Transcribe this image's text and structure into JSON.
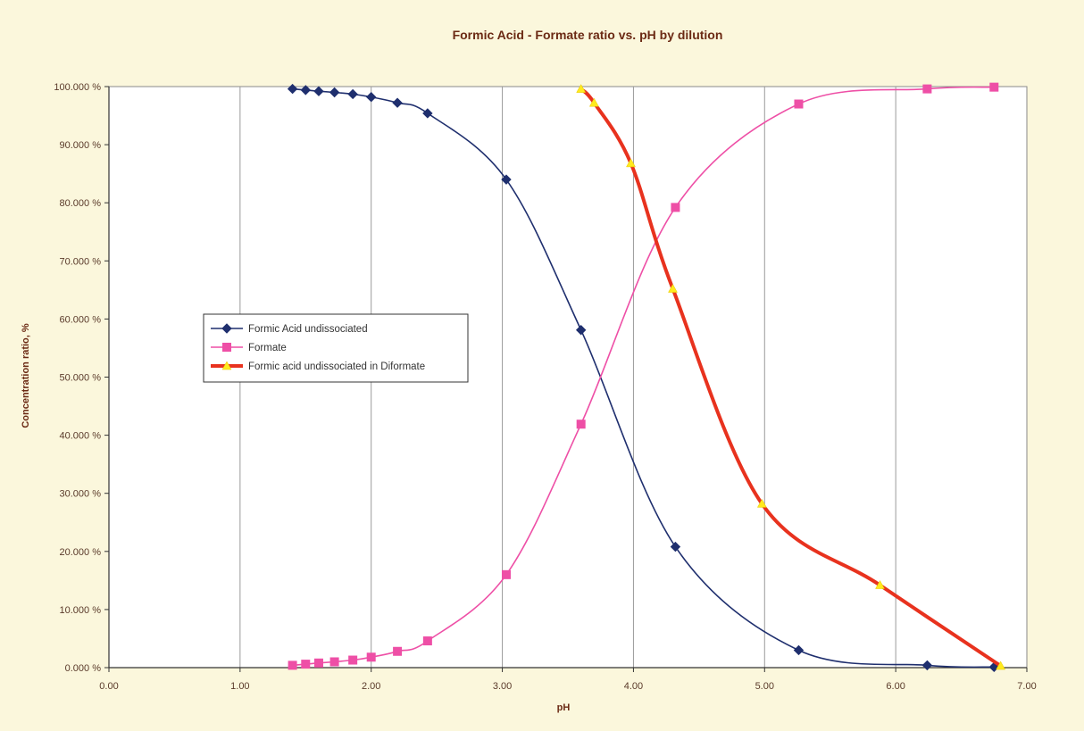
{
  "chart_data": {
    "type": "line",
    "title": "Formic Acid - Formate ratio vs. pH by dilution",
    "xlabel": "pH",
    "ylabel": "Concentration ratio, %",
    "xlim": [
      0,
      7
    ],
    "ylim": [
      0,
      100
    ],
    "x_ticks": [
      "0.00",
      "1.00",
      "2.00",
      "3.00",
      "4.00",
      "5.00",
      "6.00",
      "7.00"
    ],
    "y_ticks": [
      "0.000 %",
      "10.000 %",
      "20.000 %",
      "30.000 %",
      "40.000 %",
      "50.000 %",
      "60.000 %",
      "70.000 %",
      "80.000 %",
      "90.000 %",
      "100.000 %"
    ],
    "grid": "vertical",
    "legend_position": "center-left",
    "series": [
      {
        "name": "Formic Acid undissociated",
        "color": "#1f2f6e",
        "marker": "diamond",
        "x": [
          1.4,
          1.5,
          1.6,
          1.72,
          1.86,
          2.0,
          2.2,
          2.43,
          3.03,
          3.6,
          4.32,
          5.26,
          6.24,
          6.75
        ],
        "y": [
          99.6,
          99.4,
          99.2,
          99.0,
          98.7,
          98.2,
          97.2,
          95.4,
          84.0,
          58.1,
          20.8,
          3.0,
          0.4,
          0.1
        ]
      },
      {
        "name": "Formate",
        "color": "#ee4fa6",
        "marker": "square",
        "x": [
          1.4,
          1.5,
          1.6,
          1.72,
          1.86,
          2.0,
          2.2,
          2.43,
          3.03,
          3.6,
          4.32,
          5.26,
          6.24,
          6.75
        ],
        "y": [
          0.4,
          0.6,
          0.8,
          1.0,
          1.3,
          1.8,
          2.8,
          4.6,
          16.0,
          41.9,
          79.2,
          97.0,
          99.6,
          99.9
        ]
      },
      {
        "name": "Formic acid undissociated in Diformate",
        "color": "#e8321e",
        "marker": "triangle",
        "x": [
          3.6,
          3.7,
          3.98,
          4.3,
          4.98,
          5.88,
          6.8
        ],
        "y": [
          99.6,
          97.2,
          86.8,
          65.2,
          28.2,
          14.2,
          0.3
        ]
      }
    ]
  }
}
